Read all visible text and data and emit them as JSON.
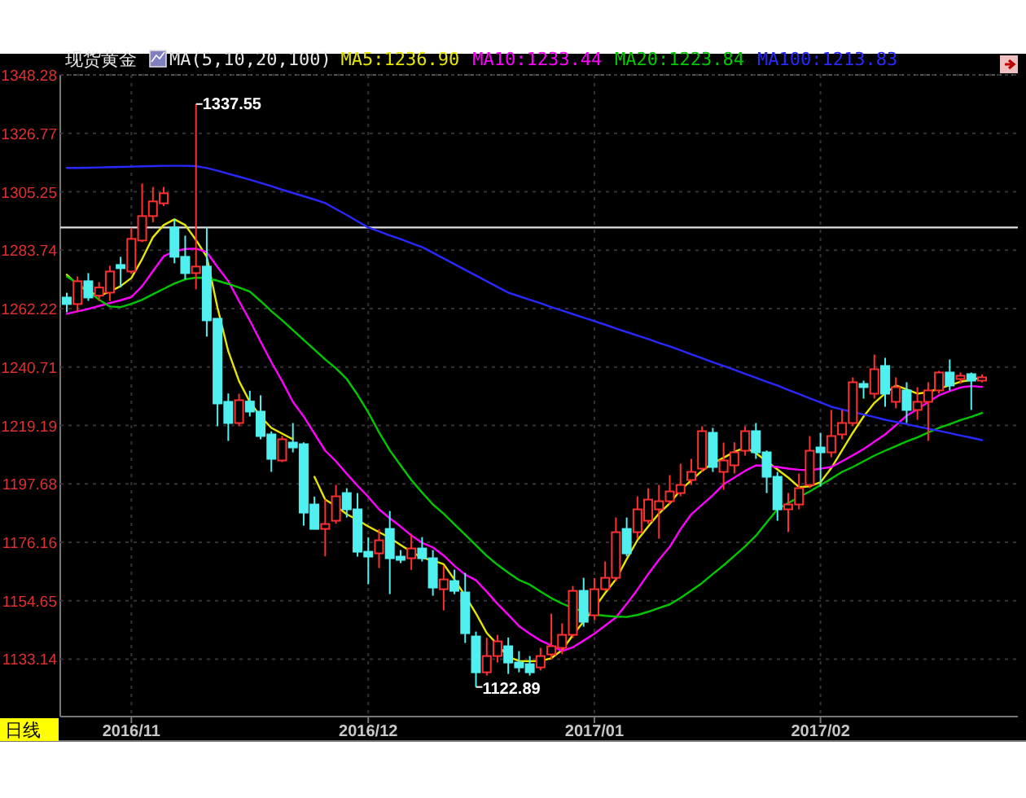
{
  "chart_data": {
    "type": "candlestick",
    "title": "现货黄金",
    "subtitle": "MA(5,10,20,100)",
    "categories": [
      null,
      null,
      null,
      null,
      null,
      null,
      "2016/11",
      null,
      null,
      null,
      null,
      null,
      null,
      null,
      null,
      null,
      null,
      null,
      null,
      null,
      null,
      null,
      null,
      null,
      null,
      null,
      null,
      null,
      "2016/12",
      null,
      null,
      null,
      null,
      null,
      null,
      null,
      null,
      null,
      null,
      null,
      null,
      null,
      null,
      null,
      null,
      null,
      null,
      null,
      null,
      "2017/01",
      null,
      null,
      null,
      null,
      null,
      null,
      null,
      null,
      null,
      null,
      null,
      null,
      null,
      null,
      null,
      null,
      null,
      null,
      null,
      null,
      "2017/02",
      null,
      null,
      null,
      null,
      null,
      null,
      null,
      null,
      null,
      null,
      null,
      null,
      null,
      null,
      null
    ],
    "ohlc": [
      [
        1266.3,
        1268.1,
        1260.9,
        1263.9
      ],
      [
        1263.9,
        1274.1,
        1261.0,
        1272.3
      ],
      [
        1272.3,
        1275.3,
        1265.1,
        1266.3
      ],
      [
        1267.0,
        1272.0,
        1265.0,
        1270.0
      ],
      [
        1268.1,
        1278.0,
        1265.0,
        1275.9
      ],
      [
        1278.3,
        1281.3,
        1270.0,
        1277.1
      ],
      [
        1275.9,
        1292.0,
        1275.0,
        1287.9
      ],
      [
        1287.3,
        1308.3,
        1286.7,
        1296.3
      ],
      [
        1296.3,
        1307.0,
        1294.0,
        1301.7
      ],
      [
        1301.0,
        1307.0,
        1300.0,
        1304.7
      ],
      [
        1292.1,
        1295.1,
        1278.9,
        1281.3
      ],
      [
        1281.3,
        1289.1,
        1273.0,
        1275.3
      ],
      [
        1275.3,
        1337.55,
        1269.3,
        1277.7
      ],
      [
        1277.7,
        1292.1,
        1251.9,
        1257.9
      ],
      [
        1258.5,
        1258.5,
        1218.9,
        1227.3
      ],
      [
        1227.9,
        1231.0,
        1213.5,
        1220.1
      ],
      [
        1220.1,
        1230.9,
        1218.9,
        1228.5
      ],
      [
        1228.0,
        1232.0,
        1222.5,
        1224.3
      ],
      [
        1224.3,
        1230.3,
        1214.1,
        1215.3
      ],
      [
        1215.9,
        1217.0,
        1202.1,
        1206.9
      ],
      [
        1206.3,
        1215.3,
        1205.7,
        1214.1
      ],
      [
        1212.9,
        1220.1,
        1209.3,
        1211.1
      ],
      [
        1212.3,
        1213.0,
        1182.3,
        1187.1
      ],
      [
        1190.1,
        1193.0,
        1181.0,
        1181.1
      ],
      [
        1181.1,
        1192.0,
        1171.0,
        1182.9
      ],
      [
        1184.1,
        1197.3,
        1183.0,
        1193.1
      ],
      [
        1194.3,
        1196.1,
        1185.3,
        1188.3
      ],
      [
        1188.3,
        1194.3,
        1170.9,
        1172.7
      ],
      [
        1172.7,
        1178.0,
        1160.7,
        1170.9
      ],
      [
        1172.1,
        1181.0,
        1166.7,
        1176.9
      ],
      [
        1181.1,
        1187.7,
        1157.1,
        1170.3
      ],
      [
        1170.9,
        1173.3,
        1168.5,
        1169.7
      ],
      [
        1170.3,
        1179.3,
        1166.0,
        1173.9
      ],
      [
        1173.9,
        1178.1,
        1169.1,
        1170.3
      ],
      [
        1170.3,
        1173.3,
        1156.5,
        1159.5
      ],
      [
        1158.9,
        1167.5,
        1151.1,
        1162.5
      ],
      [
        1161.9,
        1166.1,
        1157.1,
        1158.3
      ],
      [
        1157.7,
        1164.9,
        1139.1,
        1142.7
      ],
      [
        1141.5,
        1143.3,
        1122.89,
        1128.3
      ],
      [
        1128.3,
        1141.0,
        1127.1,
        1134.3
      ],
      [
        1134.3,
        1142.1,
        1131.9,
        1139.7
      ],
      [
        1137.9,
        1141.1,
        1127.7,
        1131.9
      ],
      [
        1131.9,
        1136.1,
        1128.3,
        1130.1
      ],
      [
        1131.3,
        1134.3,
        1127.1,
        1128.3
      ],
      [
        1130.1,
        1137.3,
        1129.0,
        1134.3
      ],
      [
        1134.9,
        1149.9,
        1133.1,
        1137.9
      ],
      [
        1137.3,
        1146.3,
        1135.0,
        1142.1
      ],
      [
        1142.1,
        1160.1,
        1140.9,
        1158.3
      ],
      [
        1158.3,
        1163.1,
        1145.1,
        1146.9
      ],
      [
        1149.3,
        1163.0,
        1147.5,
        1158.9
      ],
      [
        1158.9,
        1169.1,
        1158.3,
        1163.1
      ],
      [
        1163.1,
        1185.3,
        1161.9,
        1179.9
      ],
      [
        1181.1,
        1185.3,
        1171.0,
        1172.1
      ],
      [
        1179.9,
        1193.1,
        1177.5,
        1188.3
      ],
      [
        1184.1,
        1196.1,
        1183.0,
        1191.9
      ],
      [
        1188.3,
        1197.3,
        1177.5,
        1191.3
      ],
      [
        1191.3,
        1200.9,
        1190.1,
        1194.9
      ],
      [
        1194.3,
        1205.1,
        1193.1,
        1197.3
      ],
      [
        1199.1,
        1206.9,
        1197.3,
        1202.1
      ],
      [
        1203.3,
        1218.9,
        1202.1,
        1217.1
      ],
      [
        1216.5,
        1218.3,
        1202.1,
        1203.9
      ],
      [
        1202.1,
        1212.9,
        1195.5,
        1206.3
      ],
      [
        1204.5,
        1213.0,
        1201.5,
        1209.3
      ],
      [
        1209.9,
        1218.9,
        1208.1,
        1217.1
      ],
      [
        1217.1,
        1220.1,
        1206.9,
        1209.3
      ],
      [
        1209.3,
        1210.0,
        1194.3,
        1200.3
      ],
      [
        1200.3,
        1202.1,
        1184.1,
        1188.3
      ],
      [
        1188.3,
        1194.3,
        1179.9,
        1190.1
      ],
      [
        1190.1,
        1201.5,
        1188.3,
        1196.1
      ],
      [
        1197.3,
        1215.3,
        1196.1,
        1209.9
      ],
      [
        1211.1,
        1216.5,
        1196.7,
        1209.3
      ],
      [
        1209.3,
        1224.9,
        1207.5,
        1215.3
      ],
      [
        1215.9,
        1224.9,
        1214.1,
        1220.1
      ],
      [
        1220.1,
        1236.9,
        1218.9,
        1235.1
      ],
      [
        1234.5,
        1235.7,
        1229.1,
        1233.3
      ],
      [
        1230.9,
        1245.3,
        1229.1,
        1239.9
      ],
      [
        1241.1,
        1244.1,
        1226.1,
        1230.9
      ],
      [
        1227.9,
        1236.9,
        1225.5,
        1233.3
      ],
      [
        1232.1,
        1235.1,
        1220.1,
        1224.9
      ],
      [
        1224.9,
        1233.3,
        1221.3,
        1227.9
      ],
      [
        1227.9,
        1235.1,
        1213.5,
        1232.1
      ],
      [
        1232.1,
        1239.3,
        1231.0,
        1238.7
      ],
      [
        1238.7,
        1243.5,
        1232.1,
        1233.9
      ],
      [
        1236.3,
        1238.7,
        1234.5,
        1237.5
      ],
      [
        1238.1,
        1238.7,
        1224.9,
        1235.7
      ],
      [
        1235.7,
        1238.0,
        1235.0,
        1236.9
      ]
    ],
    "series": [
      {
        "type": "line",
        "name": "MA5:1236.90",
        "color": "#e6e600",
        "values": [
          1274.7,
          1271.0,
          1268.5,
          1266.9,
          1268.5,
          1270.5,
          1273.5,
          1280.5,
          1288.5,
          1293.0,
          1295.1,
          1293.0,
          1287.5,
          1281.3,
          1262.5,
          1246.5,
          1235.5,
          1227.9,
          1222.5,
          1218.3,
          1216.2,
          1214.1,
          null,
          1200.3,
          1191.9,
          1189.5,
          1186.5,
          1184.4,
          1182.0,
          1179.9,
          1177.8,
          1175.2,
          1172.7,
          1170.5,
          1169.5,
          1168.1,
          1162.5,
          1156.5,
          1150.0,
          1142.8,
          1138.5,
          1134.0,
          1132.5,
          1132.4,
          1132.5,
          1133.5,
          1136.5,
          1142.0,
          1147.0,
          1152.0,
          1157.5,
          1162.5,
          1170.0,
          1177.0,
          1182.0,
          1186.8,
          1190.5,
          1195.5,
          1199.0,
          1202.5,
          1205.3,
          1207.3,
          1209.5,
          1211.1,
          1209.0,
          1206.0,
          1203.0,
          1200.0,
          1196.5,
          1196.8,
          1198.3,
          1203.5,
          1210.0,
          1216.5,
          1222.5,
          1227.5,
          1231.0,
          1233.9,
          1232.5,
          1230.9,
          1231.5,
          1232.7,
          1234.0,
          1235.3,
          1236.0,
          1236.9
        ]
      },
      {
        "type": "line",
        "name": "MA10:1233.44",
        "color": "#ff00ff",
        "values": [
          1260.3,
          1261.2,
          1262.1,
          1263.2,
          1264.3,
          1265.3,
          1266.5,
          1270.5,
          1276.0,
          1281.5,
          1283.3,
          1284.2,
          1284.3,
          1283.0,
          1277.5,
          1272.3,
          1265.0,
          1257.8,
          1250.1,
          1242.5,
          1235.5,
          1227.9,
          1222.5,
          1216.2,
          1209.9,
          1206.0,
          1201.4,
          1197.0,
          1192.9,
          1188.3,
          1185.0,
          1182.0,
          1178.7,
          1176.0,
          1174.3,
          1171.3,
          1167.5,
          1164.3,
          1162.2,
          1158.0,
          1153.5,
          1149.5,
          1145.3,
          1142.5,
          1140.0,
          1138.2,
          1136.1,
          1137.5,
          1140.0,
          1142.5,
          1145.5,
          1148.5,
          1153.5,
          1158.8,
          1164.5,
          1169.8,
          1174.5,
          1181.0,
          1186.5,
          1190.0,
          1193.5,
          1197.5,
          1200.0,
          1202.5,
          1204.5,
          1204.3,
          1203.9,
          1203.3,
          1202.9,
          1202.7,
          1203.3,
          1203.9,
          1206.0,
          1208.2,
          1210.5,
          1213.2,
          1215.9,
          1219.3,
          1222.8,
          1225.2,
          1227.8,
          1230.3,
          1231.8,
          1233.2,
          1233.7,
          1233.4
        ]
      },
      {
        "type": "line",
        "name": "MA20:1223.84",
        "color": "#00c800",
        "values": [
          1274.1,
          1271.5,
          1268.5,
          1265.5,
          1263.0,
          1262.8,
          1264.0,
          1265.5,
          1267.5,
          1269.5,
          1271.5,
          1273.0,
          1273.6,
          1273.5,
          1272.5,
          1271.3,
          1270.0,
          1268.5,
          1265.0,
          1261.3,
          1257.9,
          1254.3,
          1250.7,
          1247.1,
          1243.5,
          1240.2,
          1236.3,
          1230.5,
          1224.0,
          1216.7,
          1210.0,
          1204.5,
          1199.1,
          1194.5,
          1190.1,
          1186.7,
          1182.8,
          1179.0,
          1175.1,
          1171.2,
          1167.9,
          1165.0,
          1162.3,
          1160.6,
          1158.0,
          1155.6,
          1153.6,
          1152.0,
          1150.6,
          1149.6,
          1149.1,
          1148.8,
          1148.7,
          1149.4,
          1150.6,
          1152.0,
          1153.3,
          1155.7,
          1158.4,
          1161.2,
          1164.5,
          1167.7,
          1171.2,
          1174.7,
          1178.6,
          1183.5,
          1188.3,
          1190.6,
          1192.8,
          1194.9,
          1197.3,
          1199.6,
          1202.1,
          1203.9,
          1206.0,
          1208.1,
          1209.9,
          1211.6,
          1213.3,
          1214.8,
          1216.6,
          1218.3,
          1219.7,
          1221.2,
          1222.4,
          1223.8
        ]
      },
      {
        "type": "line",
        "name": "MA100:1213.83",
        "color": "#2828ff",
        "values": [
          1314.0,
          1314.0,
          1314.1,
          1314.2,
          1314.3,
          1314.4,
          1314.5,
          1314.6,
          1314.7,
          1314.8,
          1314.8,
          1314.8,
          1314.7,
          1314.0,
          1313.0,
          1311.9,
          1310.8,
          1309.7,
          1308.5,
          1307.3,
          1306.0,
          1304.8,
          1303.6,
          1302.4,
          1301.1,
          1298.9,
          1296.7,
          1294.4,
          1292.1,
          1290.7,
          1289.2,
          1287.8,
          1286.3,
          1284.9,
          1282.8,
          1280.7,
          1278.6,
          1276.5,
          1274.4,
          1272.3,
          1270.2,
          1268.1,
          1266.8,
          1265.5,
          1264.2,
          1262.8,
          1261.5,
          1260.2,
          1258.9,
          1257.6,
          1256.3,
          1254.9,
          1253.6,
          1252.3,
          1251.0,
          1249.6,
          1248.3,
          1246.9,
          1245.4,
          1244.0,
          1242.5,
          1241.1,
          1239.7,
          1238.2,
          1236.8,
          1235.3,
          1233.9,
          1232.3,
          1230.8,
          1229.2,
          1227.7,
          1226.1,
          1225.1,
          1224.2,
          1223.2,
          1222.3,
          1221.3,
          1220.5,
          1219.7,
          1218.8,
          1218.0,
          1217.2,
          1216.4,
          1215.5,
          1214.7,
          1213.8
        ]
      }
    ],
    "ylim": [
      1112,
      1348.28
    ],
    "yticks": [
      1133.14,
      1154.65,
      1176.16,
      1197.68,
      1219.19,
      1240.71,
      1262.22,
      1283.74,
      1305.25,
      1326.77,
      1348.28
    ],
    "grid": true,
    "legend": "top",
    "marker": "none",
    "ref_lines": [
      {
        "axis": "y",
        "value": 1292.1,
        "color": "#e0e0e0"
      }
    ],
    "annotations": [
      "日线",
      "1337.55",
      "1122.89"
    ]
  }
}
